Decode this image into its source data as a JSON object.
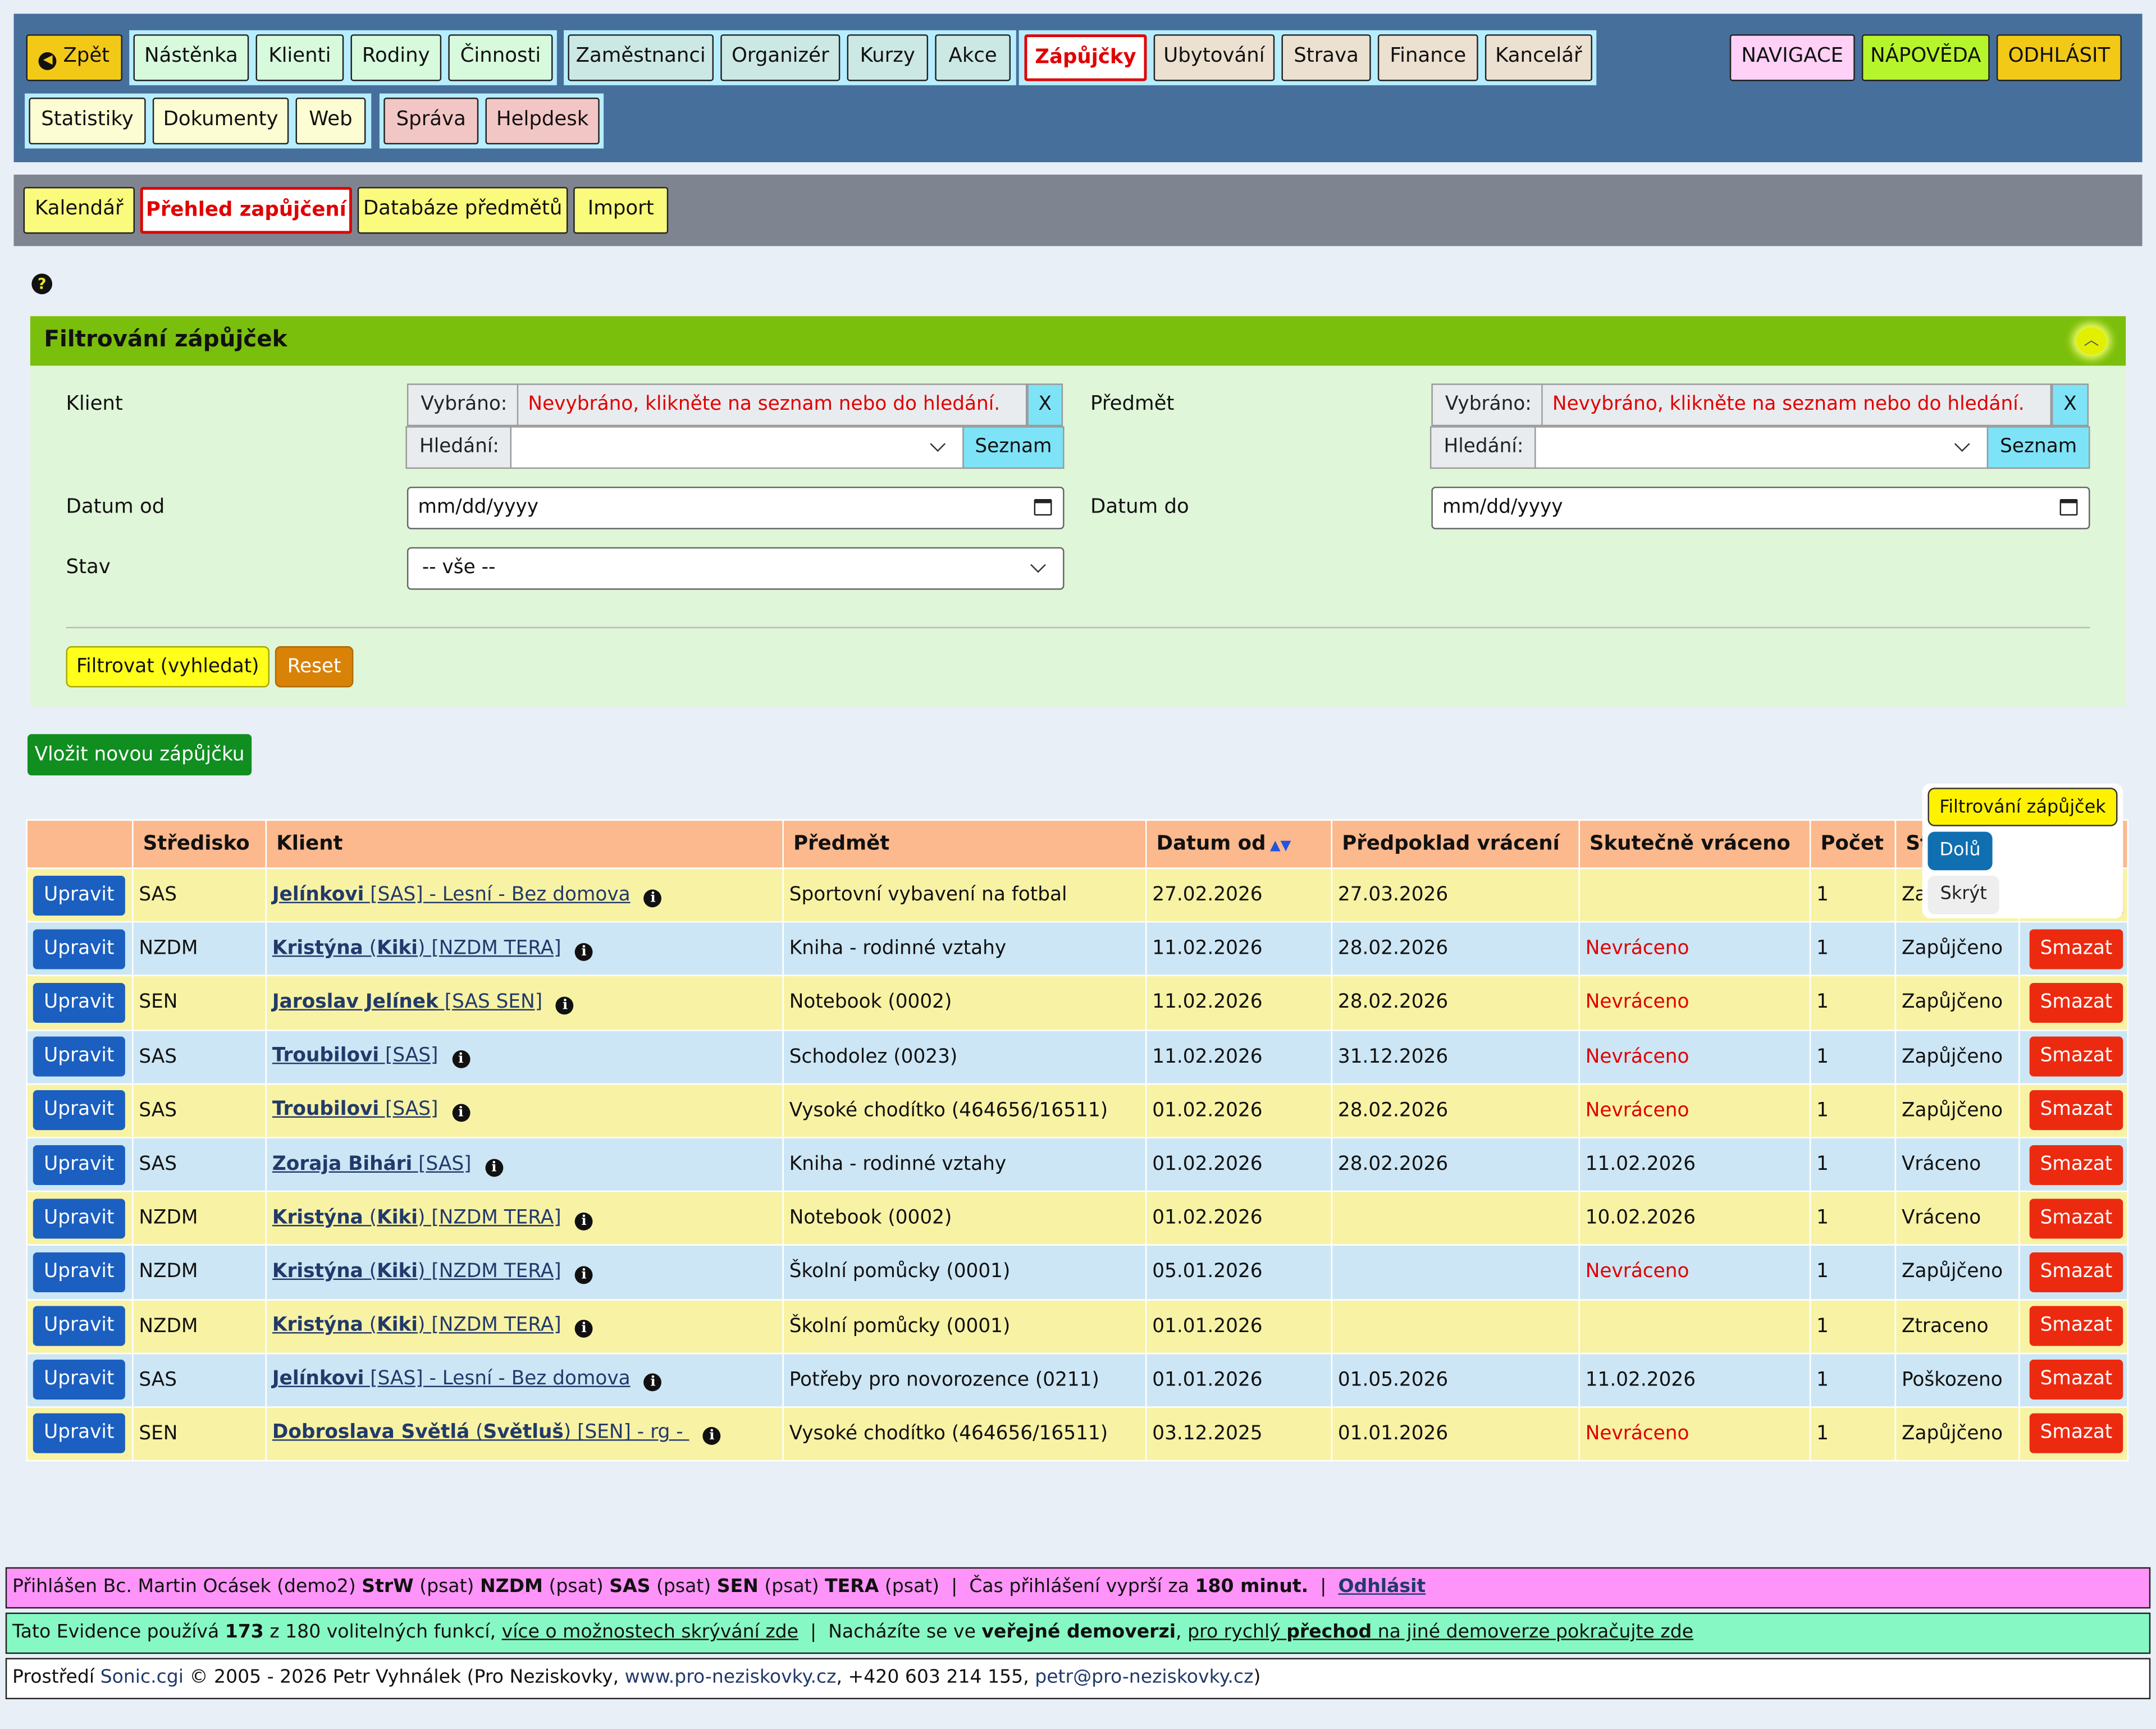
{
  "nav": {
    "back": "Zpět",
    "group1": [
      "Nástěnka",
      "Klienti",
      "Rodiny",
      "Činnosti"
    ],
    "group2": [
      "Zaměstnanci",
      "Organizér",
      "Kurzy",
      "Akce"
    ],
    "active": "Zápůjčky",
    "group3": [
      "Ubytování",
      "Strava",
      "Finance",
      "Kancelář"
    ],
    "group4": [
      "Statistiky",
      "Dokumenty",
      "Web"
    ],
    "group5": [
      "Správa",
      "Helpdesk"
    ],
    "right": [
      "NAVIGACE",
      "NÁPOVĚDA",
      "ODHLÁSIT"
    ]
  },
  "subnav": [
    "Kalendář",
    "Přehled zapůjčení",
    "Databáze předmětů",
    "Import"
  ],
  "help_icon": "question-icon",
  "filter": {
    "title": "Filtrování zápůjček",
    "klient_label": "Klient",
    "predmet_label": "Předmět",
    "vybrano_label": "Vybráno:",
    "vybrano_value": "Nevybráno, klikněte na seznam nebo do hledání.",
    "x_label": "X",
    "hledani_label": "Hledání:",
    "seznam_label": "Seznam",
    "datum_od_label": "Datum od",
    "datum_do_label": "Datum do",
    "date_placeholder": "mm/dd/yyyy",
    "stav_label": "Stav",
    "stav_value": "-- vše --",
    "filter_button": "Filtrovat (vyhledat)",
    "reset_button": "Reset"
  },
  "new_button": "Vložit novou zápůjčku",
  "table": {
    "headers": [
      "",
      "Středisko",
      "Klient",
      "Předmět",
      "Datum od",
      "Předpoklad vrácení",
      "Skutečně vráceno",
      "Počet",
      "Stav",
      ""
    ],
    "edit_label": "Upravit",
    "delete_label": "Smazat",
    "rows": [
      {
        "stredisko": "SAS",
        "name": "Jelínkovi",
        "nick": "",
        "tag": " [SAS] - Lesní - Bez domova",
        "predmet": "Sportovní vybavení na fotbal",
        "od": "27.02.2026",
        "predpoklad": "27.03.2026",
        "vraceno": "",
        "vraceno_red": false,
        "pocet": "1",
        "stav": "Zapůjčeno"
      },
      {
        "stredisko": "NZDM",
        "name": "Kristýna",
        "nick": "Kiki",
        "tag": " [NZDM TERA]",
        "predmet": "Kniha - rodinné vztahy",
        "od": "11.02.2026",
        "predpoklad": "28.02.2026",
        "vraceno": "Nevráceno",
        "vraceno_red": true,
        "pocet": "1",
        "stav": "Zapůjčeno"
      },
      {
        "stredisko": "SEN",
        "name": "Jaroslav Jelínek",
        "nick": "",
        "tag": " [SAS SEN]",
        "predmet": "Notebook (0002)",
        "od": "11.02.2026",
        "predpoklad": "28.02.2026",
        "vraceno": "Nevráceno",
        "vraceno_red": true,
        "pocet": "1",
        "stav": "Zapůjčeno"
      },
      {
        "stredisko": "SAS",
        "name": "Troubilovi",
        "nick": "",
        "tag": " [SAS]",
        "predmet": "Schodolez (0023)",
        "od": "11.02.2026",
        "predpoklad": "31.12.2026",
        "vraceno": "Nevráceno",
        "vraceno_red": true,
        "pocet": "1",
        "stav": "Zapůjčeno"
      },
      {
        "stredisko": "SAS",
        "name": "Troubilovi",
        "nick": "",
        "tag": " [SAS]",
        "predmet": "Vysoké chodítko (464656/16511)",
        "od": "01.02.2026",
        "predpoklad": "28.02.2026",
        "vraceno": "Nevráceno",
        "vraceno_red": true,
        "pocet": "1",
        "stav": "Zapůjčeno"
      },
      {
        "stredisko": "SAS",
        "name": "Zoraja Bihári",
        "nick": "",
        "tag": " [SAS]",
        "predmet": "Kniha - rodinné vztahy",
        "od": "01.02.2026",
        "predpoklad": "28.02.2026",
        "vraceno": "11.02.2026",
        "vraceno_red": false,
        "pocet": "1",
        "stav": "Vráceno"
      },
      {
        "stredisko": "NZDM",
        "name": "Kristýna",
        "nick": "Kiki",
        "tag": " [NZDM TERA]",
        "predmet": "Notebook (0002)",
        "od": "01.02.2026",
        "predpoklad": "",
        "vraceno": "10.02.2026",
        "vraceno_red": false,
        "pocet": "1",
        "stav": "Vráceno"
      },
      {
        "stredisko": "NZDM",
        "name": "Kristýna",
        "nick": "Kiki",
        "tag": " [NZDM TERA]",
        "predmet": "Školní pomůcky (0001)",
        "od": "05.01.2026",
        "predpoklad": "",
        "vraceno": "Nevráceno",
        "vraceno_red": true,
        "pocet": "1",
        "stav": "Zapůjčeno"
      },
      {
        "stredisko": "NZDM",
        "name": "Kristýna",
        "nick": "Kiki",
        "tag": " [NZDM TERA]",
        "predmet": "Školní pomůcky (0001)",
        "od": "01.01.2026",
        "predpoklad": "",
        "vraceno": "",
        "vraceno_red": false,
        "pocet": "1",
        "stav": "Ztraceno"
      },
      {
        "stredisko": "SAS",
        "name": "Jelínkovi",
        "nick": "",
        "tag": " [SAS] - Lesní - Bez domova",
        "predmet": "Potřeby pro novorozence (0211)",
        "od": "01.01.2026",
        "predpoklad": "01.05.2026",
        "vraceno": "11.02.2026",
        "vraceno_red": false,
        "pocet": "1",
        "stav": "Poškozeno"
      },
      {
        "stredisko": "SEN",
        "name": "Dobroslava Světlá",
        "nick": "Světluš",
        "tag": " [SEN] - rg - ",
        "predmet": "Vysoké chodítko (464656/16511)",
        "od": "03.12.2025",
        "predpoklad": "01.01.2026",
        "vraceno": "Nevráceno",
        "vraceno_red": true,
        "pocet": "1",
        "stav": "Zapůjčeno"
      }
    ]
  },
  "popup": {
    "filter_label": "Filtrování zápůjček",
    "down_label": "Dolů",
    "hide_label": "Skrýt"
  },
  "footer": {
    "l1_a": "Přihlášen Bc. Martin Ocásek (demo2) ",
    "l1_strw": "StrW",
    "l1_b": " (psat) ",
    "l1_nzdm": "NZDM",
    "l1_c": " (psat) ",
    "l1_sas": "SAS",
    "l1_d": " (psat) ",
    "l1_sen": "SEN",
    "l1_e": " (psat) ",
    "l1_tera": "TERA",
    "l1_f": " (psat)  |  Čas přihlášení vyprší za ",
    "l1_min": "180 minut.",
    "l1_g": "  |  ",
    "l1_logout": "Odhlásit",
    "l2_a": "Tato Evidence používá ",
    "l2_num": "173",
    "l2_b": " z 180 volitelných funkcí, ",
    "l2_link": "více o možnostech skrývání zde",
    "l2_c": "  |  Nacházíte se ve ",
    "l2_demo": "veřejné demoverzi",
    "l2_d": ", ",
    "l2_link2a": "pro rychlý ",
    "l2_link2b": "přechod",
    "l2_link2c": " na jiné demoverze pokračujte zde",
    "l3_a": "Prostředí ",
    "l3_sonic": "Sonic.cgi",
    "l3_b": " © 2005 - 2026 Petr Vyhnálek (Pro Neziskovky, ",
    "l3_web": "www.pro-neziskovky.cz",
    "l3_c": ", +420 603 214 155, ",
    "l3_mail": "petr@pro-neziskovky.cz",
    "l3_d": ")"
  },
  "colors": {
    "active_red": "#e00000",
    "nav_bg": "#476f9b",
    "filter_head": "#7abf0b",
    "edit_blue": "#1b5fc0",
    "delete_red": "#ec2a10",
    "new_green": "#108e20"
  }
}
